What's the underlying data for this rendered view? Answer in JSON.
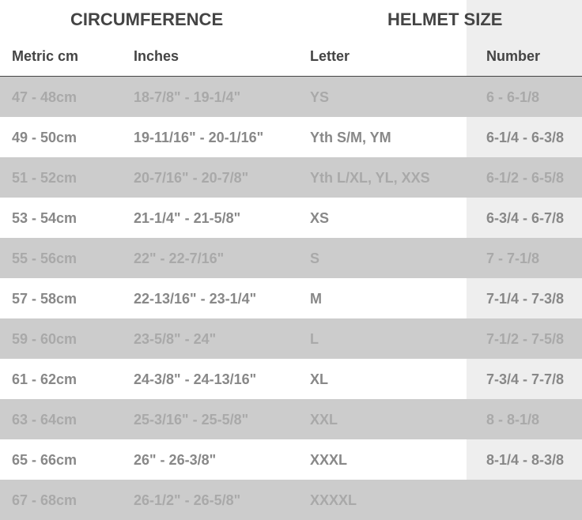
{
  "titles": {
    "circumference": "CIRCUMFERENCE",
    "helmet_size": "HELMET SIZE"
  },
  "columns": [
    "Metric cm",
    "Inches",
    "Letter",
    "Number"
  ],
  "rows": [
    [
      "47 - 48cm",
      "18-7/8\" - 19-1/4\"",
      "YS",
      "6 - 6-1/8"
    ],
    [
      "49 - 50cm",
      "19-11/16\" - 20-1/16\"",
      "Yth S/M, YM",
      "6-1/4 - 6-3/8"
    ],
    [
      "51 - 52cm",
      "20-7/16\" - 20-7/8\"",
      "Yth L/XL, YL, XXS",
      "6-1/2 - 6-5/8"
    ],
    [
      "53 - 54cm",
      "21-1/4\" - 21-5/8\"",
      "XS",
      "6-3/4 - 6-7/8"
    ],
    [
      "55 - 56cm",
      "22\" - 22-7/16\"",
      "S",
      "7 - 7-1/8"
    ],
    [
      "57 - 58cm",
      "22-13/16\" - 23-1/4\"",
      "M",
      "7-1/4 - 7-3/8"
    ],
    [
      "59 - 60cm",
      "23-5/8\" - 24\"",
      "L",
      "7-1/2 - 7-5/8"
    ],
    [
      "61 - 62cm",
      "24-3/8\" - 24-13/16\"",
      "XL",
      "7-3/4 - 7-7/8"
    ],
    [
      "63 - 64cm",
      "25-3/16\" - 25-5/8\"",
      "XXL",
      "8 - 8-1/8"
    ],
    [
      "65 - 66cm",
      "26\" - 26-3/8\"",
      "XXXL",
      "8-1/4 - 8-3/8"
    ],
    [
      "67 - 68cm",
      "26-1/2\" - 26-5/8\"",
      "XXXXL",
      ""
    ]
  ],
  "colors": {
    "odd_row": "#cccccc",
    "number_column": "#eeeeee",
    "header_text": "#444444"
  }
}
